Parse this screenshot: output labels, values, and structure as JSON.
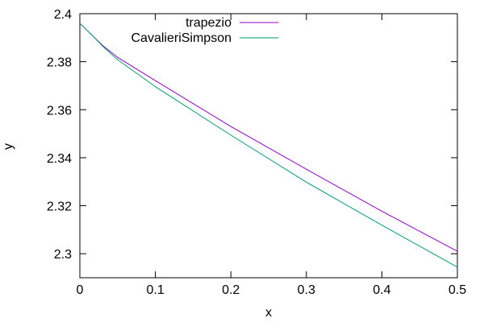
{
  "chart_data": {
    "type": "line",
    "xlabel": "x",
    "ylabel": "y",
    "xlim": [
      0,
      0.5
    ],
    "ylim": [
      2.29,
      2.4
    ],
    "xticks": [
      0,
      0.1,
      0.2,
      0.3,
      0.4,
      0.5
    ],
    "xtick_labels": [
      "0",
      "0.1",
      "0.2",
      "0.3",
      "0.4",
      "0.5"
    ],
    "yticks": [
      2.3,
      2.32,
      2.34,
      2.36,
      2.38,
      2.4
    ],
    "ytick_labels": [
      "2.3",
      "2.32",
      "2.34",
      "2.36",
      "2.38",
      "2.4"
    ],
    "grid": false,
    "legend_position": "top-center",
    "series": [
      {
        "name": "trapezio",
        "color": "#9400d3",
        "x": [
          0,
          0.01,
          0.02,
          0.03,
          0.05,
          0.1,
          0.2,
          0.3,
          0.4,
          0.5
        ],
        "y": [
          2.396,
          2.3929,
          2.3898,
          2.3868,
          2.3818,
          2.3721,
          2.353,
          2.3352,
          2.3177,
          2.301
        ]
      },
      {
        "name": "CavalieriSimpson",
        "color": "#009e73",
        "x": [
          0,
          0.01,
          0.02,
          0.03,
          0.05,
          0.1,
          0.2,
          0.3,
          0.4,
          0.5
        ],
        "y": [
          2.396,
          2.3929,
          2.3898,
          2.3865,
          2.3808,
          2.3696,
          2.3494,
          2.3298,
          2.3119,
          2.2944
        ]
      }
    ]
  }
}
